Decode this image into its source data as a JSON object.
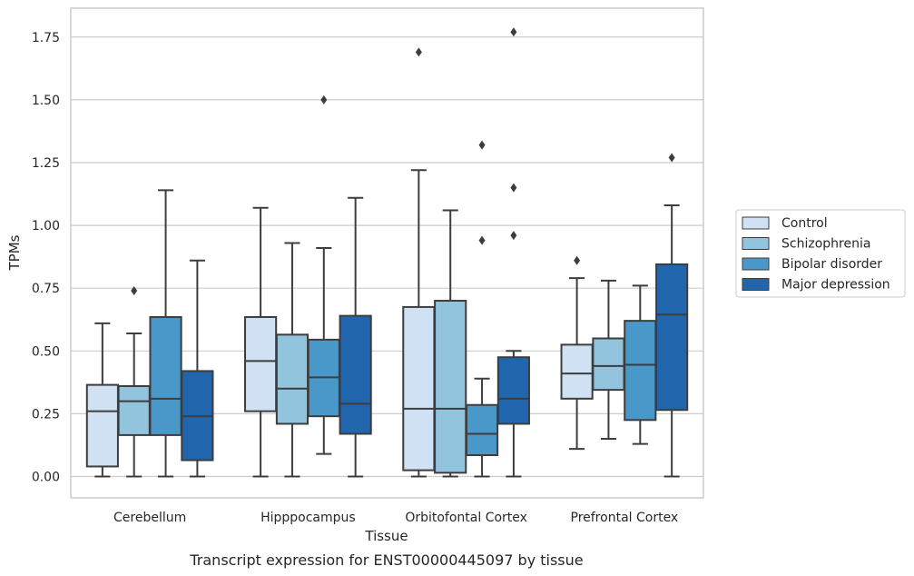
{
  "chart_data": {
    "type": "box",
    "caption": "Transcript expression for ENST00000445097 by tissue",
    "xlabel": "Tissue",
    "ylabel": "TPMs",
    "ylim": [
      -0.085,
      1.865
    ],
    "yticks": [
      0.0,
      0.25,
      0.5,
      0.75,
      1.0,
      1.25,
      1.5,
      1.75
    ],
    "ytick_labels": [
      "0.00",
      "0.25",
      "0.50",
      "0.75",
      "1.00",
      "1.25",
      "1.50",
      "1.75"
    ],
    "grid": "horizontal",
    "legend_position": "right",
    "categories": [
      "Cerebellum",
      "Hipppocampus",
      "Orbitofontal Cortex",
      "Prefrontal Cortex"
    ],
    "series": [
      {
        "name": "Control",
        "color": "#cfe1f2",
        "boxes": [
          {
            "whislo": 0.0,
            "q1": 0.04,
            "med": 0.26,
            "q3": 0.365,
            "whishi": 0.61,
            "fliers": []
          },
          {
            "whislo": 0.0,
            "q1": 0.26,
            "med": 0.46,
            "q3": 0.635,
            "whishi": 1.07,
            "fliers": []
          },
          {
            "whislo": 0.0,
            "q1": 0.025,
            "med": 0.27,
            "q3": 0.675,
            "whishi": 1.22,
            "fliers": [
              1.69
            ]
          },
          {
            "whislo": 0.11,
            "q1": 0.31,
            "med": 0.41,
            "q3": 0.525,
            "whishi": 0.79,
            "fliers": [
              0.86
            ]
          }
        ]
      },
      {
        "name": "Schizophrenia",
        "color": "#93c4de",
        "boxes": [
          {
            "whislo": 0.0,
            "q1": 0.165,
            "med": 0.3,
            "q3": 0.36,
            "whishi": 0.57,
            "fliers": [
              0.74
            ]
          },
          {
            "whislo": 0.0,
            "q1": 0.21,
            "med": 0.35,
            "q3": 0.565,
            "whishi": 0.93,
            "fliers": []
          },
          {
            "whislo": 0.0,
            "q1": 0.015,
            "med": 0.27,
            "q3": 0.7,
            "whishi": 1.06,
            "fliers": []
          },
          {
            "whislo": 0.15,
            "q1": 0.345,
            "med": 0.44,
            "q3": 0.55,
            "whishi": 0.78,
            "fliers": []
          }
        ]
      },
      {
        "name": "Bipolar disorder",
        "color": "#4a98c9",
        "boxes": [
          {
            "whislo": 0.0,
            "q1": 0.165,
            "med": 0.31,
            "q3": 0.635,
            "whishi": 1.14,
            "fliers": []
          },
          {
            "whislo": 0.09,
            "q1": 0.24,
            "med": 0.395,
            "q3": 0.545,
            "whishi": 0.91,
            "fliers": [
              1.5
            ]
          },
          {
            "whislo": 0.0,
            "q1": 0.085,
            "med": 0.17,
            "q3": 0.285,
            "whishi": 0.39,
            "fliers": [
              0.94,
              1.32
            ]
          },
          {
            "whislo": 0.13,
            "q1": 0.225,
            "med": 0.445,
            "q3": 0.62,
            "whishi": 0.76,
            "fliers": []
          }
        ]
      },
      {
        "name": "Major depression",
        "color": "#2166ac",
        "boxes": [
          {
            "whislo": 0.0,
            "q1": 0.065,
            "med": 0.24,
            "q3": 0.42,
            "whishi": 0.86,
            "fliers": []
          },
          {
            "whislo": 0.0,
            "q1": 0.17,
            "med": 0.29,
            "q3": 0.64,
            "whishi": 1.11,
            "fliers": []
          },
          {
            "whislo": 0.0,
            "q1": 0.21,
            "med": 0.31,
            "q3": 0.475,
            "whishi": 0.5,
            "fliers": [
              0.96,
              1.15,
              1.77
            ]
          },
          {
            "whislo": 0.0,
            "q1": 0.265,
            "med": 0.645,
            "q3": 0.845,
            "whishi": 1.08,
            "fliers": [
              1.27
            ]
          }
        ]
      }
    ]
  }
}
